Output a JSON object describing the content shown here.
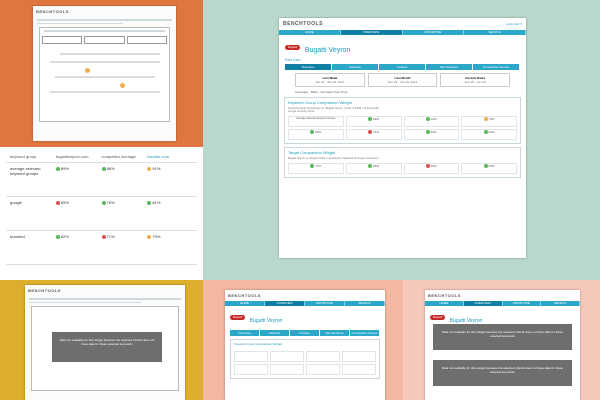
{
  "brand": "BENCHTOOLS",
  "colors": {
    "orange": "#e0763f",
    "mint": "#b9d8cc",
    "mustard": "#dcae2c",
    "peach": "#f2b8a0",
    "pink": "#f5c8bb",
    "teal": "#2aa7c9",
    "red": "#c62828"
  },
  "main": {
    "user": "Holly Holz ▾",
    "date": "Jan 30, 2014",
    "nav": [
      "HOME",
      "OVERVIEW",
      "PRIORITIZE",
      "SEARCH"
    ],
    "brand_pill": "Bugatti",
    "product": "Bugatti Veyron",
    "section": "Fast Cars",
    "tabs": [
      "Overview",
      "Adwords",
      "Content",
      "Site Structure",
      "Competitive Scores"
    ],
    "periods": [
      {
        "label": "Last Week",
        "value": "Jan 22 - Jan 29, 2014"
      },
      {
        "label": "Last Month",
        "value": "Dec 29 - Jan 29, 2014"
      },
      {
        "label": "Custom Dates",
        "value": "Dec 29 - Jan 29"
      }
    ],
    "options": [
      "Coverage",
      "Rank",
      "Compare Over Time"
    ],
    "widget1": {
      "title": "Keyword Group Comparison Widget",
      "desc": "Keyword Group Comparison for 'Bugatti Veyron' (1,234 / 24,891 / 12 keywords)",
      "link": "Google Authority Score",
      "label": "Average Selected Keyword Groups",
      "values": [
        "89%",
        "91%",
        "74%",
        "85%",
        "71%",
        "83%",
        "81%"
      ]
    },
    "widget2": {
      "title": "Target Comparison Widget",
      "desc": "Bugatti Veyron vs. Bugatti Chiron, Lamborghini, Maserati (Average Competitor)",
      "values": [
        "77%",
        "85%",
        "69%",
        "83%"
      ]
    }
  },
  "left_table": {
    "headers": [
      "keyword group",
      "bugattiveyron.com",
      "competitor average",
      "favorite.com"
    ],
    "rows": [
      {
        "name": "average selected keyword groups",
        "a": "89%",
        "b": "86%",
        "c": "91%"
      },
      {
        "name": "google",
        "a": "65%",
        "b": "76%",
        "c": "81%"
      },
      {
        "name": "branded",
        "a": "82%",
        "b": "71%",
        "c": "79%"
      }
    ],
    "notes": [
      "3 of keywords decreased by 1 of 4 keywords decreased by 4%",
      "3 of keywords decreased by 1 of 4 keywords decreased by 3%",
      "3 of keywords decreased by 1 of 4 keywords decreased by 4%"
    ]
  },
  "overlay_msgs": [
    "Data not available for this widget because the selected criteria does not have data for these selected keywords",
    "Data not available for this widget because the selected criteria does not have data for these selected keywords"
  ]
}
